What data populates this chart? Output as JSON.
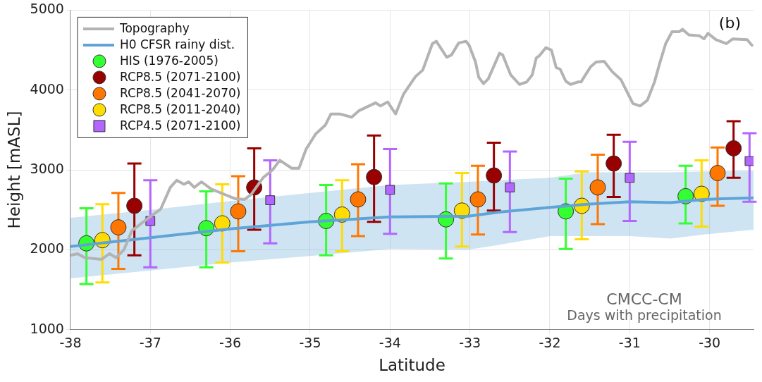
{
  "chart_data": {
    "type": "scatter",
    "xlabel": "Latitude",
    "ylabel": "Height [mASL]",
    "xlim": [
      -38,
      -29.45
    ],
    "xticks": [
      -38,
      -37,
      -36,
      -35,
      -34,
      -33,
      -32,
      -31,
      -30
    ],
    "ylim": [
      1000,
      5000
    ],
    "yticks": [
      1000,
      2000,
      3000,
      4000,
      5000
    ],
    "grid": true,
    "legend": "top left",
    "annotations": [
      "(b)",
      "CMCC-CM",
      "Days with precipitation"
    ],
    "series": [
      {
        "name": "Topography",
        "type": "line",
        "color": "#b3b3b3",
        "marker": "none",
        "x": [
          -38.0,
          -37.91,
          -37.82,
          -37.61,
          -37.51,
          -37.43,
          -37.33,
          -37.23,
          -37.02,
          -36.87,
          -36.75,
          -36.67,
          -36.58,
          -36.52,
          -36.45,
          -36.36,
          -36.24,
          -36.09,
          -35.94,
          -35.82,
          -35.74,
          -35.59,
          -35.47,
          -35.38,
          -35.23,
          -35.14,
          -35.05,
          -34.93,
          -34.81,
          -34.74,
          -34.63,
          -34.48,
          -34.39,
          -34.18,
          -34.12,
          -34.03,
          -33.93,
          -33.83,
          -33.68,
          -33.59,
          -33.47,
          -33.42,
          -33.29,
          -33.23,
          -33.14,
          -33.05,
          -33.01,
          -32.93,
          -32.89,
          -32.83,
          -32.77,
          -32.63,
          -32.59,
          -32.49,
          -32.38,
          -32.29,
          -32.22,
          -32.17,
          -32.13,
          -32.05,
          -31.98,
          -31.92,
          -31.87,
          -31.8,
          -31.74,
          -31.65,
          -31.61,
          -31.49,
          -31.42,
          -31.32,
          -31.22,
          -31.11,
          -31.02,
          -30.96,
          -30.87,
          -30.78,
          -30.69,
          -30.62,
          -30.55,
          -30.47,
          -30.38,
          -30.34,
          -30.26,
          -30.13,
          -30.07,
          -30.02,
          -29.92,
          -29.79,
          -29.71,
          -29.53,
          -29.47
        ],
        "values": [
          1930,
          1950,
          1900,
          1880,
          1950,
          1900,
          2000,
          2240,
          2400,
          2510,
          2780,
          2870,
          2820,
          2850,
          2780,
          2850,
          2760,
          2700,
          2640,
          2630,
          2690,
          2900,
          3000,
          3120,
          3020,
          3020,
          3260,
          3450,
          3560,
          3700,
          3700,
          3660,
          3740,
          3840,
          3800,
          3850,
          3700,
          3950,
          4170,
          4250,
          4580,
          4610,
          4410,
          4440,
          4590,
          4610,
          4560,
          4350,
          4160,
          4080,
          4140,
          4460,
          4440,
          4190,
          4070,
          4100,
          4190,
          4400,
          4430,
          4530,
          4500,
          4280,
          4260,
          4110,
          4070,
          4100,
          4100,
          4290,
          4350,
          4360,
          4230,
          4130,
          3950,
          3830,
          3800,
          3870,
          4100,
          4350,
          4580,
          4730,
          4730,
          4760,
          4690,
          4680,
          4640,
          4710,
          4630,
          4580,
          4640,
          4630,
          4560
        ]
      },
      {
        "name": "H0 CFSR rainy dist.",
        "type": "line",
        "color": "#5fa4d6",
        "marker": "none",
        "x": [
          -38,
          -37,
          -36,
          -35,
          -34,
          -33.02,
          -32.64,
          -32,
          -31.53,
          -31,
          -30.49,
          -30.07,
          -29.45
        ],
        "values": [
          2040,
          2150,
          2260,
          2350,
          2410,
          2420,
          2470,
          2530,
          2570,
          2600,
          2590,
          2630,
          2650
        ],
        "lower": [
          1640,
          1740,
          1840,
          1920,
          2010,
          2000,
          2060,
          2170,
          2170,
          2170,
          2140,
          2190,
          2250
        ],
        "upper": [
          2400,
          2500,
          2610,
          2710,
          2810,
          2850,
          2870,
          2900,
          2970,
          2970,
          2970,
          2980,
          2990
        ]
      },
      {
        "name": "HIS (1976-2005)",
        "color": "#33ff33",
        "marker": "circle",
        "x": [
          -37.8,
          -36.3,
          -34.8,
          -33.3,
          -31.8,
          -30.3
        ],
        "values": [
          2080,
          2270,
          2360,
          2380,
          2480,
          2670
        ],
        "errors": [
          [
            1570,
            2520
          ],
          [
            1780,
            2730
          ],
          [
            1930,
            2810
          ],
          [
            1890,
            2830
          ],
          [
            2010,
            2890
          ],
          [
            2330,
            3050
          ]
        ]
      },
      {
        "name": "RCP8.5 (2071-2100)",
        "color": "#990000",
        "marker": "circle",
        "x": [
          -37.2,
          -35.7,
          -34.2,
          -32.7,
          -31.2,
          -29.7
        ],
        "values": [
          2550,
          2780,
          2910,
          2930,
          3080,
          3270
        ],
        "errors": [
          [
            1930,
            3080
          ],
          [
            2250,
            3270
          ],
          [
            2350,
            3430
          ],
          [
            2490,
            3340
          ],
          [
            2660,
            3440
          ],
          [
            2900,
            3610
          ]
        ]
      },
      {
        "name": "RCP8.5 (2041-2070)",
        "color": "#ff7700",
        "marker": "circle",
        "x": [
          -37.4,
          -35.9,
          -34.4,
          -32.9,
          -31.4,
          -29.9
        ],
        "values": [
          2280,
          2480,
          2630,
          2630,
          2780,
          2960
        ],
        "errors": [
          [
            1760,
            2710
          ],
          [
            1980,
            2920
          ],
          [
            2170,
            3070
          ],
          [
            2190,
            3050
          ],
          [
            2320,
            3190
          ],
          [
            2550,
            3280
          ]
        ]
      },
      {
        "name": "RCP8.5 (2011-2040)",
        "color": "#ffdd00",
        "marker": "circle",
        "x": [
          -37.6,
          -36.1,
          -34.6,
          -33.1,
          -31.6,
          -30.1
        ],
        "values": [
          2120,
          2330,
          2440,
          2490,
          2550,
          2700
        ],
        "errors": [
          [
            1590,
            2570
          ],
          [
            1840,
            2820
          ],
          [
            1980,
            2870
          ],
          [
            2040,
            2960
          ],
          [
            2130,
            2980
          ],
          [
            2290,
            3120
          ]
        ]
      },
      {
        "name": "RCP4.5 (2071-2100)",
        "color": "#b266ff",
        "marker": "square",
        "x": [
          -37.0,
          -35.5,
          -34.0,
          -32.5,
          -31.0,
          -29.5
        ],
        "values": [
          2360,
          2620,
          2750,
          2780,
          2900,
          3110
        ],
        "errors": [
          [
            1780,
            2870
          ],
          [
            2080,
            3120
          ],
          [
            2200,
            3260
          ],
          [
            2220,
            3230
          ],
          [
            2360,
            3350
          ],
          [
            2600,
            3460
          ]
        ]
      }
    ]
  }
}
